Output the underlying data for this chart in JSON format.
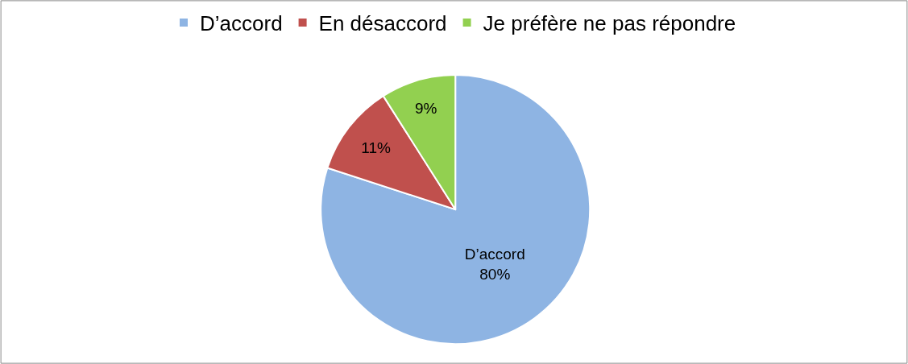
{
  "chart_data": {
    "type": "pie",
    "categories": [
      "D’accord",
      "En désaccord",
      "Je préfère ne pas répondre"
    ],
    "values": [
      80,
      11,
      9
    ],
    "colors": [
      "#8eb4e3",
      "#c0504d",
      "#92d050"
    ],
    "value_labels": [
      "D’accord\n80%",
      "11%",
      "9%"
    ],
    "legend": "top"
  }
}
